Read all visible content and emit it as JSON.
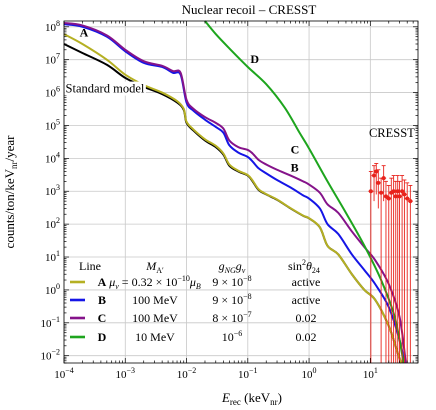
{
  "chart_data": {
    "type": "line",
    "title": "Nuclear recoil – CRESST",
    "xlabel": {
      "main": "E",
      "sub": "rec",
      "unit_open": " (keV",
      "unit_sub": "nr",
      "unit_close": ")"
    },
    "ylabel": {
      "main": "counts/ton/keV",
      "sub": "nr",
      "tail": "/year"
    },
    "xscale": "log",
    "yscale": "log",
    "xlim": [
      0.0001,
      60
    ],
    "ylim": [
      0.006,
      150000000
    ],
    "grid": true,
    "x_ticks": [
      {
        "value": 0.0001,
        "base": "10",
        "exp": "−4"
      },
      {
        "value": 0.001,
        "base": "10",
        "exp": "−3"
      },
      {
        "value": 0.01,
        "base": "10",
        "exp": "−2"
      },
      {
        "value": 0.1,
        "base": "10",
        "exp": "−1"
      },
      {
        "value": 1,
        "base": "10",
        "exp": "0"
      },
      {
        "value": 10,
        "base": "10",
        "exp": "1"
      }
    ],
    "y_ticks": [
      {
        "value": 0.01,
        "base": "10",
        "exp": "−2"
      },
      {
        "value": 0.1,
        "base": "10",
        "exp": "−1"
      },
      {
        "value": 1,
        "base": "10",
        "exp": "0"
      },
      {
        "value": 10,
        "base": "10",
        "exp": "1"
      },
      {
        "value": 100,
        "base": "10",
        "exp": "2"
      },
      {
        "value": 1000,
        "base": "10",
        "exp": "3"
      },
      {
        "value": 10000,
        "base": "10",
        "exp": "4"
      },
      {
        "value": 100000,
        "base": "10",
        "exp": "5"
      },
      {
        "value": 1000000,
        "base": "10",
        "exp": "6"
      },
      {
        "value": 10000000,
        "base": "10",
        "exp": "7"
      },
      {
        "value": 100000000,
        "base": "10",
        "exp": "8"
      }
    ],
    "series": [
      {
        "name": "Standard model",
        "color": "#000000",
        "points": [
          [
            0.0001,
            30000000.0
          ],
          [
            0.0002,
            16000000.0
          ],
          [
            0.0005,
            7000000.0
          ],
          [
            0.001,
            2800000.0
          ],
          [
            0.002,
            1500000.0
          ],
          [
            0.004,
            900000.0
          ],
          [
            0.007,
            500000.0
          ],
          [
            0.009,
            300000.0
          ],
          [
            0.01,
            120000.0
          ],
          [
            0.013,
            70000.0
          ],
          [
            0.02,
            35000.0
          ],
          [
            0.03,
            22000.0
          ],
          [
            0.04,
            13000.0
          ],
          [
            0.05,
            6000.0
          ],
          [
            0.07,
            4000.0
          ],
          [
            0.1,
            3000.0
          ],
          [
            0.12,
            2000.0
          ],
          [
            0.15,
            1100.0
          ],
          [
            0.2,
            800
          ],
          [
            0.3,
            550
          ],
          [
            0.5,
            300
          ],
          [
            0.8,
            180
          ],
          [
            1,
            150
          ],
          [
            1.5,
            80
          ],
          [
            2,
            22
          ],
          [
            3,
            12
          ],
          [
            5,
            3
          ],
          [
            8,
            1
          ],
          [
            12,
            0.5
          ],
          [
            20,
            0.08
          ],
          [
            28,
            0.012
          ],
          [
            32,
            0.006
          ]
        ]
      },
      {
        "name": "A",
        "color": "#b5b023",
        "points": [
          [
            0.0001,
            60000000.0
          ],
          [
            0.0002,
            30000000.0
          ],
          [
            0.0005,
            10000000.0
          ],
          [
            0.001,
            3500000.0
          ],
          [
            0.002,
            1700000.0
          ],
          [
            0.004,
            1000000.0
          ],
          [
            0.007,
            550000.0
          ],
          [
            0.009,
            320000.0
          ],
          [
            0.01,
            130000.0
          ],
          [
            0.013,
            75000.0
          ],
          [
            0.02,
            38000.0
          ],
          [
            0.03,
            24000.0
          ],
          [
            0.04,
            14000.0
          ],
          [
            0.05,
            6500.0
          ],
          [
            0.07,
            4200.0
          ],
          [
            0.1,
            3100.0
          ],
          [
            0.12,
            2100.0
          ],
          [
            0.15,
            1150.0
          ],
          [
            0.2,
            820
          ],
          [
            0.3,
            560
          ],
          [
            0.5,
            305
          ],
          [
            0.8,
            182
          ],
          [
            1,
            152
          ],
          [
            1.5,
            81
          ],
          [
            2,
            22
          ],
          [
            3,
            12
          ],
          [
            5,
            3
          ],
          [
            8,
            1
          ],
          [
            12,
            0.5
          ],
          [
            20,
            0.08
          ],
          [
            28,
            0.012
          ],
          [
            32,
            0.006
          ]
        ]
      },
      {
        "name": "B",
        "color": "#1515e6",
        "points": [
          [
            0.0001,
            120000000.0
          ],
          [
            0.0002,
            100000000.0
          ],
          [
            0.0005,
            50000000.0
          ],
          [
            0.001,
            18000000.0
          ],
          [
            0.002,
            8000000.0
          ],
          [
            0.004,
            6000000.0
          ],
          [
            0.006,
            4000000.0
          ],
          [
            0.008,
            3500000.0
          ],
          [
            0.01,
            500000.0
          ],
          [
            0.013,
            280000.0
          ],
          [
            0.02,
            150000.0
          ],
          [
            0.03,
            90000.0
          ],
          [
            0.04,
            60000.0
          ],
          [
            0.05,
            25000.0
          ],
          [
            0.07,
            15000.0
          ],
          [
            0.1,
            11000.0
          ],
          [
            0.12,
            8000.0
          ],
          [
            0.15,
            5000.0
          ],
          [
            0.2,
            3500.0
          ],
          [
            0.3,
            2200.0
          ],
          [
            0.5,
            1300.0
          ],
          [
            0.8,
            750
          ],
          [
            1,
            600
          ],
          [
            1.5,
            300
          ],
          [
            2,
            100
          ],
          [
            3,
            50
          ],
          [
            5,
            12
          ],
          [
            8,
            4
          ],
          [
            12,
            1.5
          ],
          [
            20,
            0.3
          ],
          [
            30,
            0.03
          ],
          [
            36,
            0.006
          ]
        ]
      },
      {
        "name": "C",
        "color": "#85138a",
        "points": [
          [
            0.0001,
            130000000.0
          ],
          [
            0.0002,
            110000000.0
          ],
          [
            0.0005,
            55000000.0
          ],
          [
            0.001,
            20000000.0
          ],
          [
            0.002,
            9000000.0
          ],
          [
            0.004,
            6500000.0
          ],
          [
            0.006,
            4500000.0
          ],
          [
            0.008,
            4000000.0
          ],
          [
            0.01,
            600000.0
          ],
          [
            0.013,
            320000.0
          ],
          [
            0.02,
            180000.0
          ],
          [
            0.03,
            120000.0
          ],
          [
            0.04,
            80000.0
          ],
          [
            0.05,
            35000.0
          ],
          [
            0.07,
            22000.0
          ],
          [
            0.1,
            18000.0
          ],
          [
            0.12,
            14000.0
          ],
          [
            0.15,
            9000.0
          ],
          [
            0.2,
            6500.0
          ],
          [
            0.3,
            4500.0
          ],
          [
            0.5,
            3000.0
          ],
          [
            0.8,
            2000.0
          ],
          [
            1,
            1600.0
          ],
          [
            1.5,
            900
          ],
          [
            2,
            400
          ],
          [
            3,
            220
          ],
          [
            5,
            60
          ],
          [
            8,
            20
          ],
          [
            12,
            8
          ],
          [
            20,
            1.5
          ],
          [
            30,
            0.15
          ],
          [
            38,
            0.006
          ]
        ]
      },
      {
        "name": "D",
        "color": "#1ea51e",
        "points": [
          [
            0.02,
            150000000.0
          ],
          [
            0.03,
            60000000.0
          ],
          [
            0.05,
            22000000.0
          ],
          [
            0.1,
            6000000.0
          ],
          [
            0.2,
            1800000.0
          ],
          [
            0.4,
            350000.0
          ],
          [
            0.7,
            60000.0
          ],
          [
            1,
            20000.0
          ],
          [
            2,
            2000.0
          ],
          [
            4,
            220
          ],
          [
            8,
            22
          ],
          [
            15,
            2
          ],
          [
            25,
            0.15
          ],
          [
            35,
            0.006
          ]
        ]
      }
    ],
    "curve_labels": [
      {
        "text": "A",
        "x": 0.00018,
        "y": 50000000.0
      },
      {
        "text": "Standard model",
        "x": 0.00011,
        "y": 1000000.0
      },
      {
        "text": "D",
        "x": 0.11,
        "y": 8000000.0
      },
      {
        "text": "C",
        "x": 0.5,
        "y": 14000.0
      },
      {
        "text": "B",
        "x": 0.5,
        "y": 4000.0
      },
      {
        "text": "CRESST",
        "x": 9.5,
        "y": 45000.0
      }
    ],
    "cresst_data": {
      "name": "CRESST",
      "color": "#e8221c",
      "points": [
        {
          "x": 10.2,
          "y": 1000,
          "low": 0.006,
          "high": 4000
        },
        {
          "x": 11.5,
          "y": 3000,
          "low": 500,
          "high": 6000
        },
        {
          "x": 12.5,
          "y": 4000,
          "low": 800,
          "high": 7000
        },
        {
          "x": 13.5,
          "y": 1800,
          "low": 300,
          "high": 4500
        },
        {
          "x": 15,
          "y": 900,
          "low": 0.006,
          "high": 2500
        },
        {
          "x": 16.5,
          "y": 2500,
          "low": 500,
          "high": 6000
        },
        {
          "x": 18,
          "y": 700,
          "low": 0.006,
          "high": 2000
        },
        {
          "x": 20,
          "y": 600,
          "low": 0.006,
          "high": 1500
        },
        {
          "x": 22,
          "y": 900,
          "low": 0.006,
          "high": 2500
        },
        {
          "x": 24,
          "y": 1000,
          "low": 0.006,
          "high": 3000
        },
        {
          "x": 26,
          "y": 700,
          "low": 0.006,
          "high": 2000
        },
        {
          "x": 28,
          "y": 1000,
          "low": 0.006,
          "high": 3000
        },
        {
          "x": 30,
          "y": 700,
          "low": 0.006,
          "high": 2000
        },
        {
          "x": 33,
          "y": 1000,
          "low": 0.006,
          "high": 3000
        },
        {
          "x": 36,
          "y": 800,
          "low": 0.006,
          "high": 2200
        },
        {
          "x": 40,
          "y": 600,
          "low": 0.006,
          "high": 1800
        },
        {
          "x": 45,
          "y": 500,
          "low": 0.006,
          "high": 1500
        }
      ]
    },
    "legend": {
      "placement": "bottom-left",
      "headers": {
        "line": "Line",
        "mass": {
          "main": "M",
          "sub": "A′"
        },
        "coupling": {
          "g1": "g",
          "s1": "NG",
          "g2": "g",
          "s2": "ν"
        },
        "sin": {
          "main": "sin",
          "sup": "2",
          "theta": "θ",
          "sub": "24"
        }
      },
      "rows": [
        {
          "label": "A",
          "color": "#b5b023",
          "mass": {
            "main": "μ",
            "sub": "ν",
            "tail": " = 0.32 × 10",
            "sup": "−10",
            "main2": "μ",
            "sub2": "B"
          },
          "coupling": {
            "base": "9 × 10",
            "sup": "−8",
            "suffix": ""
          },
          "sin": "active"
        },
        {
          "label": "B",
          "color": "#1515e6",
          "mass": {
            "main": "100 MeV"
          },
          "coupling": {
            "base": "9 × 10",
            "sup": "−8",
            "suffix": ""
          },
          "sin": "active"
        },
        {
          "label": "C",
          "color": "#85138a",
          "mass": {
            "main": "100 MeV"
          },
          "coupling": {
            "base": "8 × 10",
            "sup": "−7",
            "suffix": ""
          },
          "sin": "0.02"
        },
        {
          "label": "D",
          "color": "#1ea51e",
          "mass": {
            "main": "10 MeV"
          },
          "coupling": {
            "base": "10",
            "sup": "−6",
            "suffix": ""
          },
          "sin": "0.02"
        }
      ]
    }
  }
}
